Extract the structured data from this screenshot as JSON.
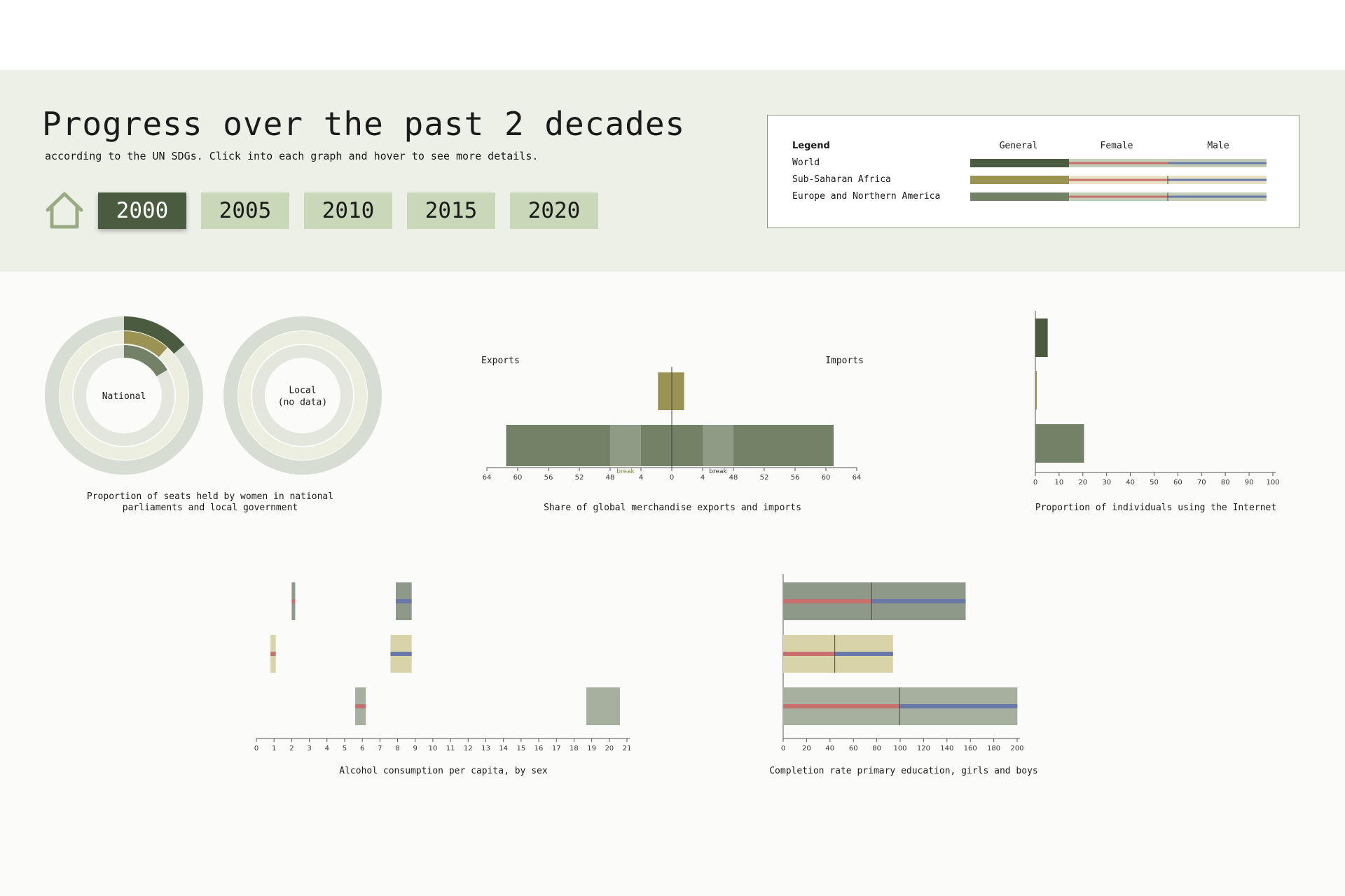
{
  "header": {
    "title": "Progress over the past 2 decades",
    "subtitle": "according to the UN SDGs. Click into each graph and hover to see more details.",
    "home_icon": "home-icon",
    "years": [
      "2000",
      "2005",
      "2010",
      "2015",
      "2020"
    ],
    "selected_year": "2000"
  },
  "legend": {
    "title": "Legend",
    "columns": [
      "General",
      "Female",
      "Male"
    ],
    "regions": [
      {
        "name": "World",
        "color": "#4b5b40"
      },
      {
        "name": "Sub-Saharan Africa",
        "color": "#9a9353"
      },
      {
        "name": "Europe and Northern America",
        "color": "#738266"
      }
    ],
    "female_color": "#c87070",
    "male_color": "#6878a8"
  },
  "colors": {
    "world": "#4b5b40",
    "ssa": "#9a9353",
    "europe": "#738266",
    "female": "#c87070",
    "male": "#6878a8",
    "ring_bg_outer": "#d8ddd3",
    "ring_bg_mid": "#eceee0",
    "ring_bg_inner": "#e3e6dd"
  },
  "captions": {
    "seats": "Proportion of seats held by women in national parliaments and local government",
    "trade": "Share of global merchandise exports and imports",
    "internet": "Proportion of individuals using the Internet",
    "alcohol": "Alcohol consumption per capita, by sex",
    "education": "Completion rate primary education, girls and boys"
  },
  "chart_data": [
    {
      "type": "radial-bar",
      "panels": [
        {
          "label": "National",
          "values": [
            {
              "series": "World",
              "value": 13.9
            },
            {
              "series": "Sub-Saharan Africa",
              "value": 11.7
            },
            {
              "series": "Europe and Northern America",
              "value": 16.5
            }
          ],
          "max": 100
        },
        {
          "label": "Local\n(no data)",
          "values": []
        }
      ]
    },
    {
      "type": "diverging-bar",
      "left_label": "Exports",
      "right_label": "Imports",
      "ticks_left": [
        "64",
        "60",
        "56",
        "52",
        "48",
        "4",
        "0"
      ],
      "ticks_right": [
        "4",
        "48",
        "52",
        "56",
        "60",
        "64"
      ],
      "break_label": "break",
      "series": [
        {
          "name": "Sub-Saharan Africa",
          "exports": 1.8,
          "imports": 1.6
        },
        {
          "name": "Europe and Northern America",
          "exports": 61.5,
          "imports": 61.0
        }
      ]
    },
    {
      "type": "bar",
      "orientation": "horizontal",
      "xticks": [
        "0",
        "10",
        "20",
        "30",
        "40",
        "50",
        "60",
        "70",
        "80",
        "90",
        "100"
      ],
      "xlim": [
        0,
        100
      ],
      "series": [
        {
          "name": "World",
          "value": 5.2
        },
        {
          "name": "Sub-Saharan Africa",
          "value": 0.6
        },
        {
          "name": "Europe and Northern America",
          "value": 20.5
        }
      ]
    },
    {
      "type": "range-bar",
      "xticks": [
        "0",
        "1",
        "2",
        "3",
        "4",
        "5",
        "6",
        "7",
        "8",
        "9",
        "10",
        "11",
        "12",
        "13",
        "14",
        "15",
        "16",
        "17",
        "18",
        "19",
        "20",
        "21"
      ],
      "xlim": [
        0,
        21
      ],
      "series": [
        {
          "name": "World",
          "female": 2.1,
          "male": 8.5,
          "general_range": [
            2.0,
            2.2
          ],
          "general_range_2": [
            7.9,
            8.8
          ]
        },
        {
          "name": "Sub-Saharan Africa",
          "female": 0.9,
          "male": 8.3,
          "general_range": [
            0.8,
            1.1
          ],
          "general_range_2": [
            7.6,
            8.8
          ]
        },
        {
          "name": "Europe and Northern America",
          "female": 5.9,
          "male": null,
          "general_range": [
            5.6,
            6.2
          ],
          "general_range_2": [
            18.7,
            20.6
          ]
        }
      ]
    },
    {
      "type": "bar",
      "orientation": "horizontal",
      "stacked": true,
      "xticks": [
        "0",
        "20",
        "40",
        "60",
        "80",
        "100",
        "120",
        "140",
        "160",
        "180",
        "200"
      ],
      "xlim": [
        0,
        200
      ],
      "series": [
        {
          "name": "World",
          "female": 75.6,
          "male": 80.4
        },
        {
          "name": "Sub-Saharan Africa",
          "female": 44.1,
          "male": 49.8
        },
        {
          "name": "Europe and Northern America",
          "female": 99.5,
          "male": 100.7
        }
      ]
    }
  ]
}
